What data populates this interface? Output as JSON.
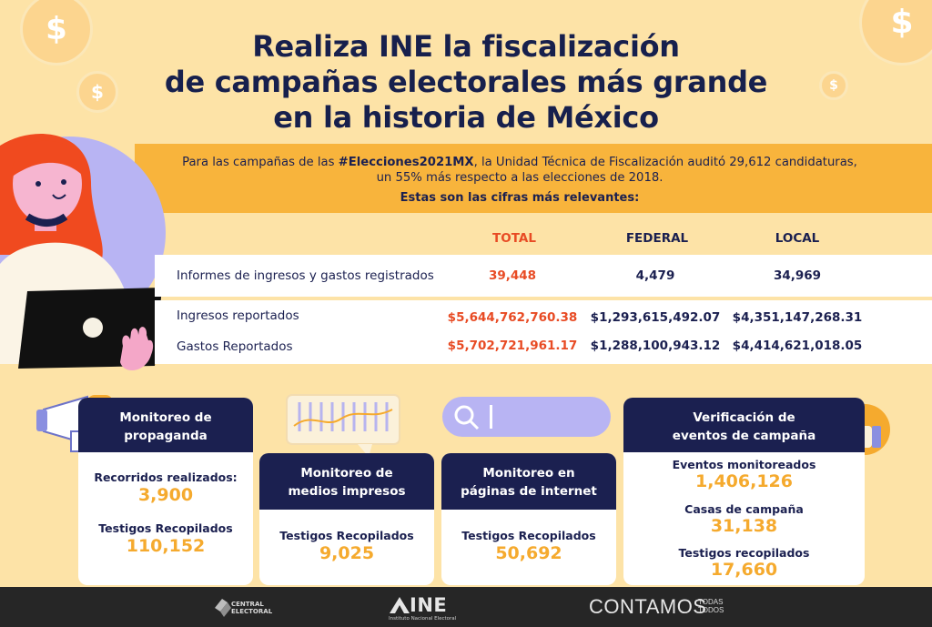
{
  "header": {
    "title_line1": "Realiza INE la fiscalización",
    "title_line2": "de campañas electorales más grande",
    "title_line3": "en la historia de México"
  },
  "intro": {
    "text_prefix": "Para las campañas de las ",
    "hashtag": "#Elecciones2021MX",
    "text_suffix": ", la Unidad Técnica de Fiscalización auditó 29,612 candidaturas,",
    "line2": "un 55% más respecto a las elecciones de 2018.",
    "subtitle": "Estas son las cifras más relevantes:"
  },
  "table": {
    "headers": [
      "TOTAL",
      "FEDERAL",
      "LOCAL"
    ],
    "rows": [
      {
        "label": "Informes de ingresos y gastos registrados",
        "total": "39,448",
        "federal": "4,479",
        "local": "34,969"
      },
      {
        "label": "Ingresos reportados",
        "total": "$5,644,762,760.38",
        "federal": "$1,293,615,492.07",
        "local": "$4,351,147,268.31"
      },
      {
        "label": "Gastos Reportados",
        "total": "$5,702,721,961.17",
        "federal": "$1,288,100,943.12",
        "local": "$4,414,621,018.05"
      }
    ]
  },
  "cards": [
    {
      "title_line1": "Monitoreo de",
      "title_line2": "propaganda",
      "stats": [
        {
          "label": "Recorridos realizados:",
          "value": "3,900"
        },
        {
          "label": "Testigos Recopilados",
          "value": "110,152"
        }
      ]
    },
    {
      "title_line1": "Monitoreo de",
      "title_line2": "medios impresos",
      "stats": [
        {
          "label": "Testigos Recopilados",
          "value": "9,025"
        }
      ]
    },
    {
      "title_line1": "Monitoreo en",
      "title_line2": "páginas de internet",
      "stats": [
        {
          "label": "Testigos Recopilados",
          "value": "50,692"
        }
      ]
    },
    {
      "title_line1": "Verificación de",
      "title_line2": "eventos de campaña",
      "stats": [
        {
          "label": "Eventos monitoreados",
          "value": "1,406,126"
        },
        {
          "label": "Casas de campaña",
          "value": "31,138"
        },
        {
          "label": "Testigos recopilados",
          "value": "17,660"
        }
      ]
    }
  ],
  "decor": {
    "coin_symbol": "$",
    "icons": [
      "dollar-coin-icon",
      "megaphone-icon",
      "newspaper-icon",
      "search-icon",
      "thumbs-up-icon",
      "laptop-icon"
    ]
  },
  "footer": {
    "central_line1": "CENTRAL",
    "central_line2": "ELECTORAL",
    "ine_logo": "INE",
    "ine_sub": "Instituto Nacional Electoral",
    "contamos": "CONTAMOS",
    "todas": "TODAS",
    "todos": "TODOS"
  },
  "colors": {
    "background": "#fde3a7",
    "band": "#f8b43c",
    "navy": "#1b2050",
    "red": "#e84b24",
    "accent_yellow": "#f5aa2e",
    "footer": "#262626"
  }
}
